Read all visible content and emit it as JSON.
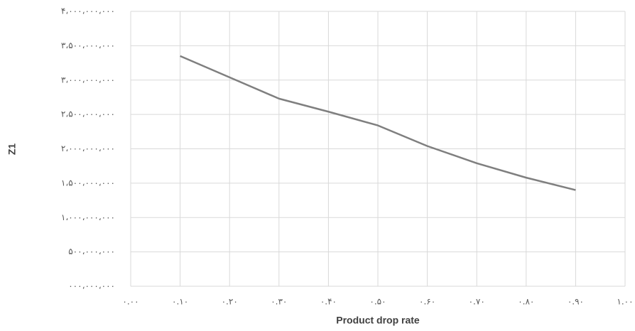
{
  "chart_data": {
    "type": "line",
    "x_label": "Product drop rate",
    "y_label": "Z1",
    "x": [
      0.1,
      0.2,
      0.3,
      0.4,
      0.5,
      0.6,
      0.7,
      0.8,
      0.9
    ],
    "series": [
      {
        "color": "#7f7f7f",
        "values": [
          3350000000,
          3040000000,
          2730000000,
          2540000000,
          2340000000,
          2040000000,
          1790000000,
          1580000000,
          1400000000
        ]
      }
    ],
    "xlim": [
      0,
      1
    ],
    "xticks": [
      {
        "value": 0,
        "label": "۰.۰۰"
      },
      {
        "value": 0.1,
        "label": "۰.۱۰"
      },
      {
        "value": 0.2,
        "label": "۰.۲۰"
      },
      {
        "value": 0.3,
        "label": "۰.۳۰"
      },
      {
        "value": 0.4,
        "label": "۰.۴۰"
      },
      {
        "value": 0.5,
        "label": "۰.۵۰"
      },
      {
        "value": 0.6,
        "label": "۰.۶۰"
      },
      {
        "value": 0.7,
        "label": "۰.۷۰"
      },
      {
        "value": 0.8,
        "label": "۰.۸۰"
      },
      {
        "value": 0.9,
        "label": "۰.۹۰"
      },
      {
        "value": 1,
        "label": "۱.۰۰"
      }
    ],
    "ylim": [
      0,
      4000000000
    ],
    "yticks": [
      {
        "value": 0,
        "label": "۰۰۰،۰۰۰،۰۰۰"
      },
      {
        "value": 500000000,
        "label": "۵۰۰،۰۰۰،۰۰۰"
      },
      {
        "value": 1000000000,
        "label": "۱،۰۰۰،۰۰۰،۰۰۰"
      },
      {
        "value": 1500000000,
        "label": "۱،۵۰۰،۰۰۰،۰۰۰"
      },
      {
        "value": 2000000000,
        "label": "۲،۰۰۰،۰۰۰،۰۰۰"
      },
      {
        "value": 2500000000,
        "label": "۲،۵۰۰،۰۰۰،۰۰۰"
      },
      {
        "value": 3000000000,
        "label": "۳،۰۰۰،۰۰۰،۰۰۰"
      },
      {
        "value": 3500000000,
        "label": "۳،۵۰۰،۰۰۰،۰۰۰"
      },
      {
        "value": 4000000000,
        "label": "۴،۰۰۰،۰۰۰،۰۰۰"
      }
    ],
    "grid": true
  }
}
